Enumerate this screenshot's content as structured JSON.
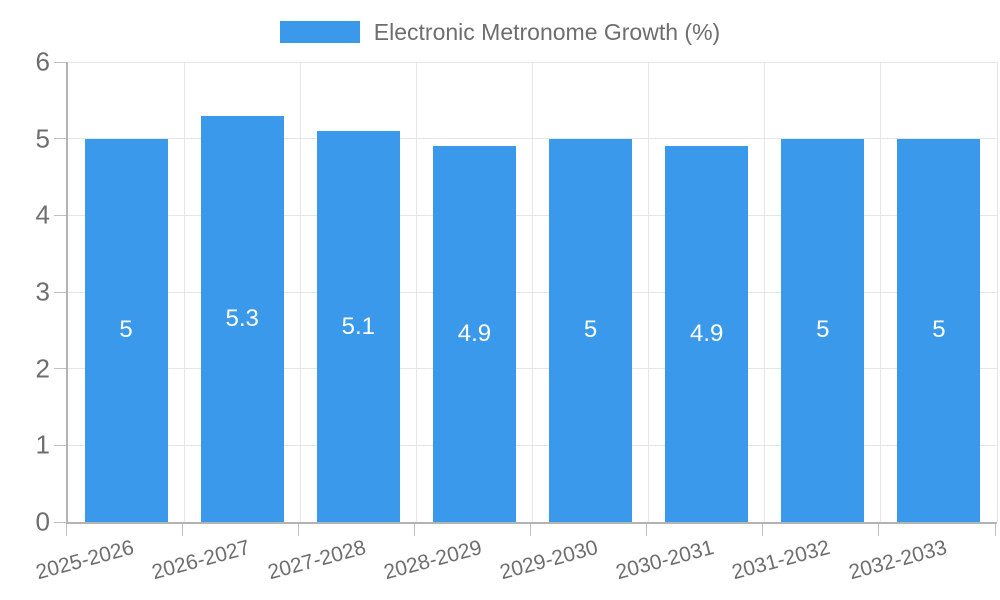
{
  "chart_data": {
    "type": "bar",
    "title": "Electronic Metronome Growth (%)",
    "categories": [
      "2025-2026",
      "2026-2027",
      "2027-2028",
      "2028-2029",
      "2029-2030",
      "2030-2031",
      "2031-2032",
      "2032-2033"
    ],
    "values": [
      5,
      5.3,
      5.1,
      4.9,
      5,
      4.9,
      5,
      5
    ],
    "value_labels": [
      "5",
      "5.3",
      "5.1",
      "4.9",
      "5",
      "4.9",
      "5",
      "5"
    ],
    "xlabel": "",
    "ylabel": "",
    "ylim": [
      0,
      6
    ],
    "yticks": [
      0,
      1,
      2,
      3,
      4,
      5,
      6
    ],
    "ytick_labels": [
      "0",
      "1",
      "2",
      "3",
      "4",
      "5",
      "6"
    ],
    "grid": true,
    "legend_position": "top",
    "x_label_rotation_deg": -15,
    "colors": {
      "bar": "#3b99ec",
      "value_label": "#ffffff",
      "grid": "#e6e6e6",
      "axis_border": "#b3b3b3",
      "tick_mark": "#c0c0c0",
      "tick_label": "#6e6e6e",
      "legend_text": "#6e6e6e",
      "background": "#ffffff"
    }
  }
}
